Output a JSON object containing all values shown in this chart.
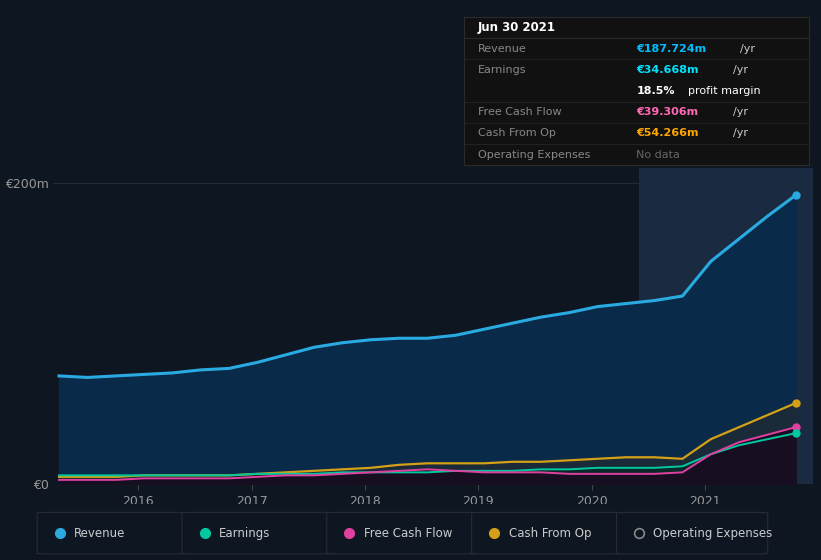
{
  "background_color": "#0e1621",
  "plot_bg_color": "#0e1621",
  "y200m_label": "€200m",
  "y0_label": "€0",
  "x_ticks": [
    2016,
    2017,
    2018,
    2019,
    2020,
    2021
  ],
  "ylim": [
    0,
    210
  ],
  "xlim_start": 2015.25,
  "xlim_end": 2021.95,
  "tooltip": {
    "date": "Jun 30 2021",
    "rows": [
      {
        "label": "Revenue",
        "value": "€187.724m /yr",
        "value_color": "#00bfff"
      },
      {
        "label": "Earnings",
        "value": "€34.668m /yr",
        "value_color": "#00e5ff"
      },
      {
        "label": "",
        "value": "18.5% profit margin",
        "value_color": "#ffffff",
        "bold_prefix": "18.5%"
      },
      {
        "label": "Free Cash Flow",
        "value": "€39.306m /yr",
        "value_color": "#ff69b4"
      },
      {
        "label": "Cash From Op",
        "value": "€54.266m /yr",
        "value_color": "#ffa500"
      },
      {
        "label": "Operating Expenses",
        "value": "No data",
        "value_color": "#666666"
      }
    ],
    "label_color": "#888888",
    "bg_color": "#111111",
    "border_color": "#2a2a2a"
  },
  "series": {
    "x": [
      2015.3,
      2015.55,
      2015.8,
      2016.05,
      2016.3,
      2016.55,
      2016.8,
      2017.05,
      2017.3,
      2017.55,
      2017.8,
      2018.05,
      2018.3,
      2018.55,
      2018.8,
      2019.05,
      2019.3,
      2019.55,
      2019.8,
      2020.05,
      2020.3,
      2020.55,
      2020.8,
      2021.05,
      2021.3,
      2021.55,
      2021.8
    ],
    "revenue": [
      72,
      71,
      72,
      73,
      74,
      76,
      77,
      81,
      86,
      91,
      94,
      96,
      97,
      97,
      99,
      103,
      107,
      111,
      114,
      118,
      120,
      122,
      125,
      148,
      163,
      178,
      192
    ],
    "earnings": [
      6,
      6,
      6,
      6,
      6,
      6,
      6,
      7,
      7,
      7,
      8,
      8,
      8,
      8,
      9,
      9,
      9,
      10,
      10,
      11,
      11,
      11,
      12,
      20,
      26,
      30,
      34
    ],
    "free_cash": [
      3,
      3,
      3,
      4,
      4,
      4,
      4,
      5,
      6,
      6,
      7,
      8,
      9,
      10,
      9,
      8,
      8,
      8,
      7,
      7,
      7,
      7,
      8,
      20,
      28,
      33,
      38
    ],
    "cash_from_op": [
      5,
      5,
      5,
      6,
      6,
      6,
      6,
      7,
      8,
      9,
      10,
      11,
      13,
      14,
      14,
      14,
      15,
      15,
      16,
      17,
      18,
      18,
      17,
      30,
      38,
      46,
      54
    ]
  },
  "colors": {
    "revenue": "#29abe2",
    "revenue_fill": "#0a2a4a",
    "earnings": "#00c9a0",
    "earnings_fill": "#083030",
    "free_cash": "#e040a0",
    "free_cash_fill": "#200820",
    "cash_from_op": "#d4a017",
    "cash_from_op_fill": "#1e1a08"
  },
  "highlight_x_start": 2020.42,
  "highlight_x_end": 2021.95,
  "highlight_color": "#1a2a40",
  "grid_color": "#1e2d3d",
  "legend": [
    {
      "label": "Revenue",
      "color": "#29abe2",
      "filled": true
    },
    {
      "label": "Earnings",
      "color": "#00c9a0",
      "filled": true
    },
    {
      "label": "Free Cash Flow",
      "color": "#e040a0",
      "filled": true
    },
    {
      "label": "Cash From Op",
      "color": "#d4a017",
      "filled": true
    },
    {
      "label": "Operating Expenses",
      "color": "#888888",
      "filled": false
    }
  ]
}
